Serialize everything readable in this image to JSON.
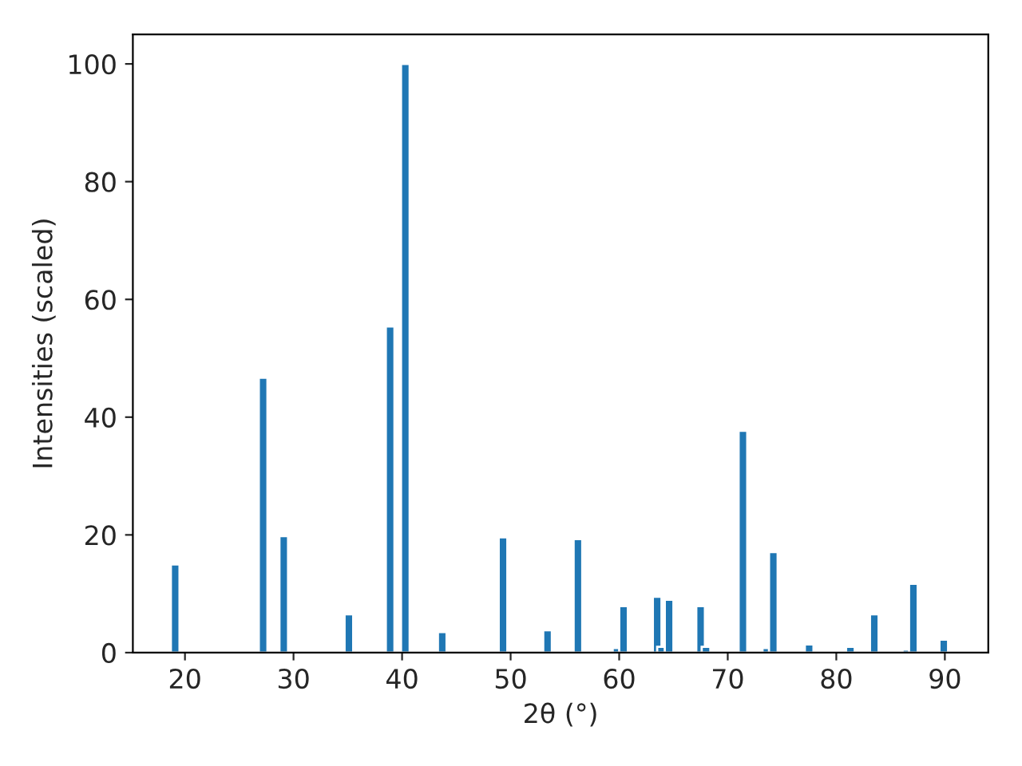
{
  "chart_data": {
    "type": "bar",
    "xlabel": "2θ (°)",
    "ylabel": "Intensities (scaled)",
    "x": [
      19.1,
      27.2,
      29.1,
      35.1,
      38.9,
      40.3,
      43.7,
      49.3,
      53.4,
      56.2,
      59.8,
      60.4,
      63.5,
      63.9,
      64.6,
      67.5,
      68.0,
      71.4,
      73.6,
      74.2,
      77.5,
      81.3,
      83.5,
      86.5,
      87.1,
      89.9
    ],
    "values": [
      15,
      46.7,
      19.8,
      6.5,
      55.4,
      100,
      3.5,
      19.6,
      3.8,
      19.3,
      0.8,
      7.9,
      9.5,
      1.0,
      9.0,
      7.9,
      1.0,
      37.7,
      0.8,
      17.1,
      1.4,
      1.0,
      6.5,
      0.5,
      11.7,
      2.2
    ],
    "color": "#1f77b4",
    "xlim": [
      15.2,
      94.0
    ],
    "ylim": [
      0,
      105
    ],
    "xticks": [
      20,
      30,
      40,
      50,
      60,
      70,
      80,
      90
    ],
    "yticks": [
      0,
      20,
      40,
      60,
      80,
      100
    ],
    "grid": false
  }
}
